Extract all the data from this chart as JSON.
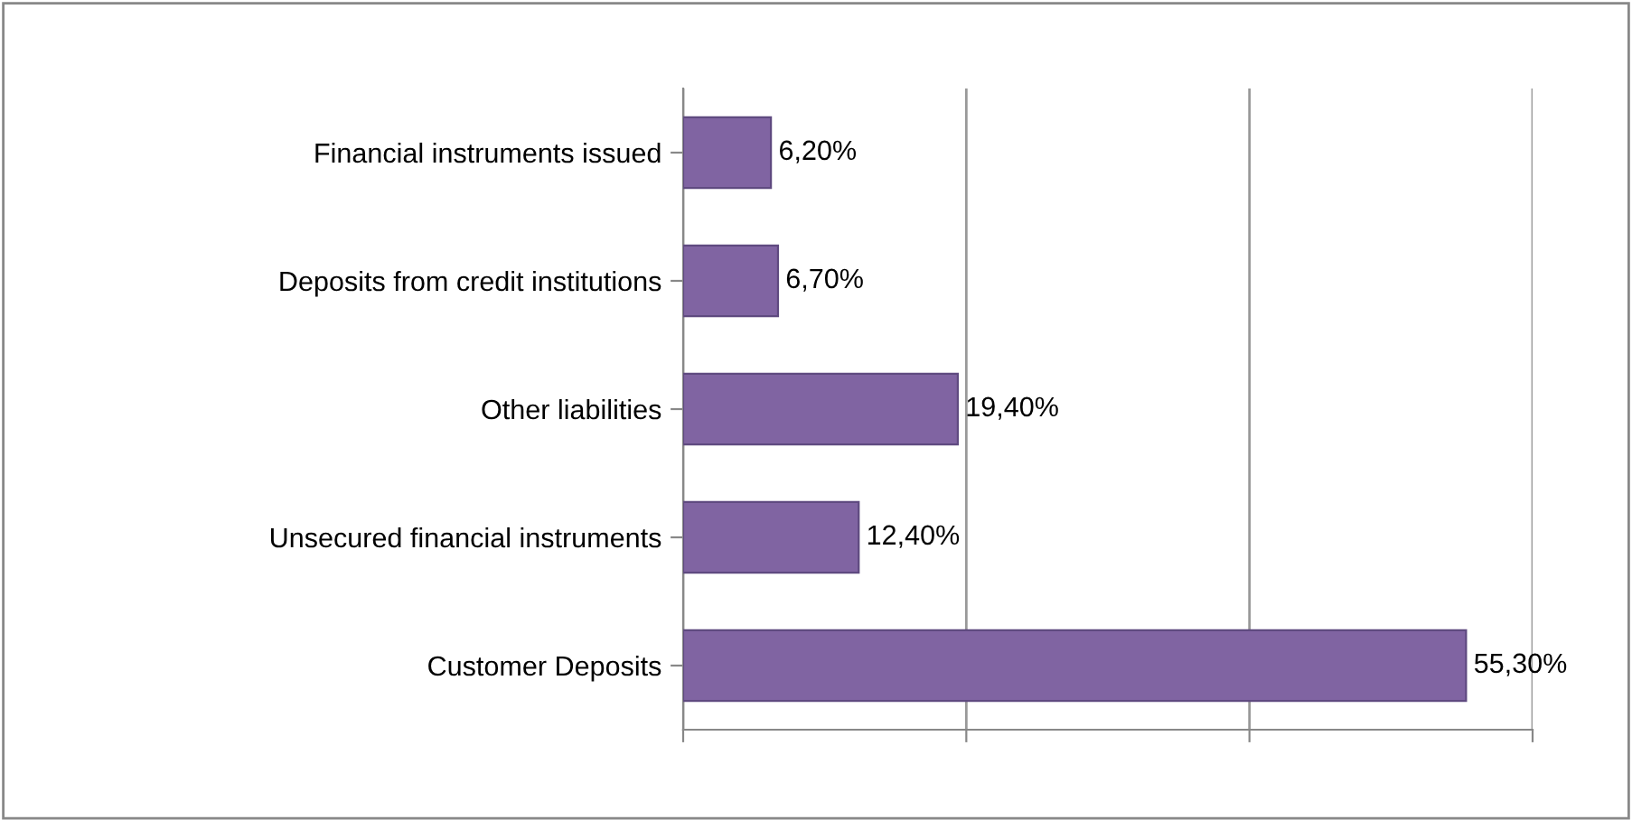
{
  "chart_data": {
    "type": "bar",
    "orientation": "horizontal",
    "categories": [
      "Financial instruments issued",
      "Deposits from credit institutions",
      "Other liabilities",
      "Unsecured financial instruments",
      "Customer Deposits"
    ],
    "values": [
      6.2,
      6.7,
      19.4,
      12.4,
      55.3
    ],
    "value_labels": [
      "6,20%",
      "6,70%",
      "19,40%",
      "12,40%",
      "55,30%"
    ],
    "color": "#8064a2",
    "xlim": [
      0,
      60
    ],
    "xticks": [
      {
        "value": 0,
        "label": null
      },
      {
        "value": 20,
        "label": null
      },
      {
        "value": 40,
        "label": null
      },
      {
        "value": 60,
        "label": null
      }
    ],
    "tick_labels": "y",
    "grid": "x",
    "legend": false
  }
}
